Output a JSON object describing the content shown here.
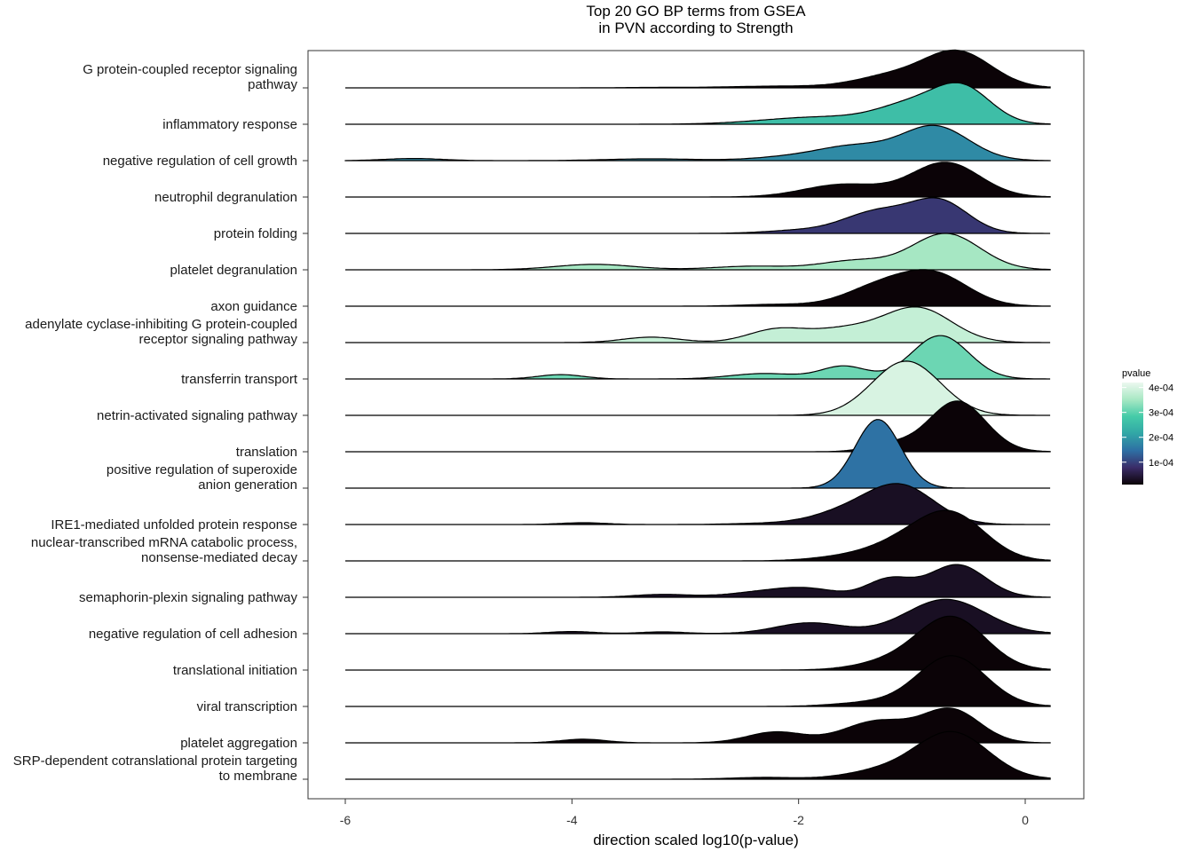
{
  "chart_data": {
    "type": "ridgeline",
    "title": [
      "Top 20 GO BP terms from GSEA",
      "in PVN according to Strength"
    ],
    "xlabel": "direction scaled log10(p-value)",
    "x_ticks": [
      -6,
      -4,
      -2,
      0
    ],
    "xlim": [
      -6.2,
      0.5
    ],
    "legend": {
      "title": "pvalue",
      "position": "right",
      "ticks": [
        {
          "label": "4e-04",
          "value": 0.0004
        },
        {
          "label": "3e-04",
          "value": 0.0003
        },
        {
          "label": "2e-04",
          "value": 0.0002
        },
        {
          "label": "1e-04",
          "value": 0.0001
        }
      ],
      "range": [
        1e-05,
        0.00042
      ],
      "colors": [
        "#0b0307",
        "#3a2c68",
        "#2e6fa4",
        "#31a6a6",
        "#45cba8",
        "#a8e8c4",
        "#ecf8ef"
      ]
    },
    "terms": [
      {
        "label": [
          "G protein-coupled receptor signaling",
          "pathway"
        ],
        "pvalue": 5e-06,
        "peaks": [
          [
            -3.3,
            0.01,
            0.3
          ],
          [
            -2.1,
            0.05,
            0.5
          ],
          [
            -1.2,
            0.3,
            0.3
          ],
          [
            -0.6,
            1.0,
            0.3
          ]
        ]
      },
      {
        "label": [
          "inflammatory response"
        ],
        "pvalue": 0.00026,
        "peaks": [
          [
            -1.8,
            0.2,
            0.5
          ],
          [
            -1.0,
            0.5,
            0.3
          ],
          [
            -0.55,
            0.95,
            0.25
          ]
        ]
      },
      {
        "label": [
          "negative regulation of cell growth"
        ],
        "pvalue": 0.00018,
        "peaks": [
          [
            -5.4,
            0.06,
            0.25
          ],
          [
            -3.3,
            0.05,
            0.4
          ],
          [
            -2.0,
            0.12,
            0.35
          ],
          [
            -1.5,
            0.35,
            0.3
          ],
          [
            -0.8,
            0.95,
            0.3
          ]
        ]
      },
      {
        "label": [
          "neutrophil degranulation"
        ],
        "pvalue": 5e-06,
        "peaks": [
          [
            -1.6,
            0.35,
            0.35
          ],
          [
            -0.7,
            0.95,
            0.3
          ]
        ]
      },
      {
        "label": [
          "protein folding"
        ],
        "pvalue": 9e-05,
        "peaks": [
          [
            -2.0,
            0.08,
            0.3
          ],
          [
            -1.3,
            0.6,
            0.3
          ],
          [
            -0.75,
            0.85,
            0.25
          ]
        ]
      },
      {
        "label": [
          "platelet degranulation"
        ],
        "pvalue": 0.00035,
        "peaks": [
          [
            -3.8,
            0.15,
            0.35
          ],
          [
            -2.4,
            0.1,
            0.35
          ],
          [
            -1.5,
            0.25,
            0.3
          ],
          [
            -0.7,
            1.0,
            0.3
          ]
        ]
      },
      {
        "label": [
          "axon guidance"
        ],
        "pvalue": 5e-06,
        "peaks": [
          [
            -2.2,
            0.05,
            0.3
          ],
          [
            -1.3,
            0.5,
            0.3
          ],
          [
            -0.8,
            0.85,
            0.3
          ]
        ]
      },
      {
        "label": [
          "adenylate cyclase-inhibiting G protein-coupled",
          "receptor signaling pathway"
        ],
        "pvalue": 0.00038,
        "peaks": [
          [
            -3.3,
            0.15,
            0.25
          ],
          [
            -2.2,
            0.35,
            0.25
          ],
          [
            -1.6,
            0.35,
            0.3
          ],
          [
            -0.95,
            0.95,
            0.3
          ]
        ]
      },
      {
        "label": [
          "transferrin transport"
        ],
        "pvalue": 0.00031,
        "peaks": [
          [
            -4.1,
            0.12,
            0.2
          ],
          [
            -2.3,
            0.15,
            0.3
          ],
          [
            -1.6,
            0.35,
            0.2
          ],
          [
            -0.75,
            1.2,
            0.25
          ]
        ]
      },
      {
        "label": [
          "netrin-activated signaling pathway"
        ],
        "pvalue": 0.0004,
        "peaks": [
          [
            -1.05,
            1.5,
            0.3
          ]
        ]
      },
      {
        "label": [
          "translation"
        ],
        "pvalue": 5e-06,
        "peaks": [
          [
            -1.2,
            0.2,
            0.2
          ],
          [
            -0.6,
            1.4,
            0.25
          ]
        ]
      },
      {
        "label": [
          "positive regulation of superoxide",
          "anion generation"
        ],
        "pvalue": 0.00015,
        "peaks": [
          [
            -1.3,
            1.9,
            0.2
          ]
        ]
      },
      {
        "label": [
          "IRE1-mediated unfolded protein response"
        ],
        "pvalue": 3e-05,
        "peaks": [
          [
            -3.9,
            0.05,
            0.2
          ],
          [
            -2.3,
            0.03,
            0.3
          ],
          [
            -1.6,
            0.3,
            0.3
          ],
          [
            -1.1,
            1.05,
            0.3
          ]
        ]
      },
      {
        "label": [
          "nuclear-transcribed mRNA catabolic process,",
          "nonsense-mediated decay"
        ],
        "pvalue": 5e-06,
        "peaks": [
          [
            -1.6,
            0.1,
            0.3
          ],
          [
            -1.1,
            0.4,
            0.3
          ],
          [
            -0.65,
            1.25,
            0.3
          ]
        ]
      },
      {
        "label": [
          "semaphorin-plexin signaling pathway"
        ],
        "pvalue": 3e-05,
        "peaks": [
          [
            -3.2,
            0.08,
            0.25
          ],
          [
            -2.3,
            0.15,
            0.3
          ],
          [
            -1.9,
            0.2,
            0.25
          ],
          [
            -1.2,
            0.5,
            0.2
          ],
          [
            -0.6,
            0.9,
            0.25
          ]
        ]
      },
      {
        "label": [
          "negative regulation of cell adhesion"
        ],
        "pvalue": 3e-05,
        "peaks": [
          [
            -4.0,
            0.06,
            0.2
          ],
          [
            -3.2,
            0.05,
            0.2
          ],
          [
            -1.9,
            0.3,
            0.3
          ],
          [
            -0.7,
            0.95,
            0.35
          ]
        ]
      },
      {
        "label": [
          "translational initiation"
        ],
        "pvalue": 5e-06,
        "peaks": [
          [
            -1.2,
            0.2,
            0.3
          ],
          [
            -0.65,
            1.45,
            0.3
          ]
        ]
      },
      {
        "label": [
          "viral transcription"
        ],
        "pvalue": 5e-06,
        "peaks": [
          [
            -1.4,
            0.1,
            0.3
          ],
          [
            -0.65,
            1.4,
            0.3
          ]
        ]
      },
      {
        "label": [
          "platelet aggregation"
        ],
        "pvalue": 5e-06,
        "peaks": [
          [
            -3.9,
            0.1,
            0.2
          ],
          [
            -2.2,
            0.3,
            0.25
          ],
          [
            -1.3,
            0.6,
            0.3
          ],
          [
            -0.65,
            0.9,
            0.25
          ]
        ]
      },
      {
        "label": [
          "SRP-dependent cotranslational protein targeting",
          "to membrane"
        ],
        "pvalue": 5e-06,
        "peaks": [
          [
            -2.3,
            0.05,
            0.3
          ],
          [
            -1.3,
            0.2,
            0.3
          ],
          [
            -0.65,
            1.3,
            0.32
          ]
        ]
      }
    ]
  }
}
